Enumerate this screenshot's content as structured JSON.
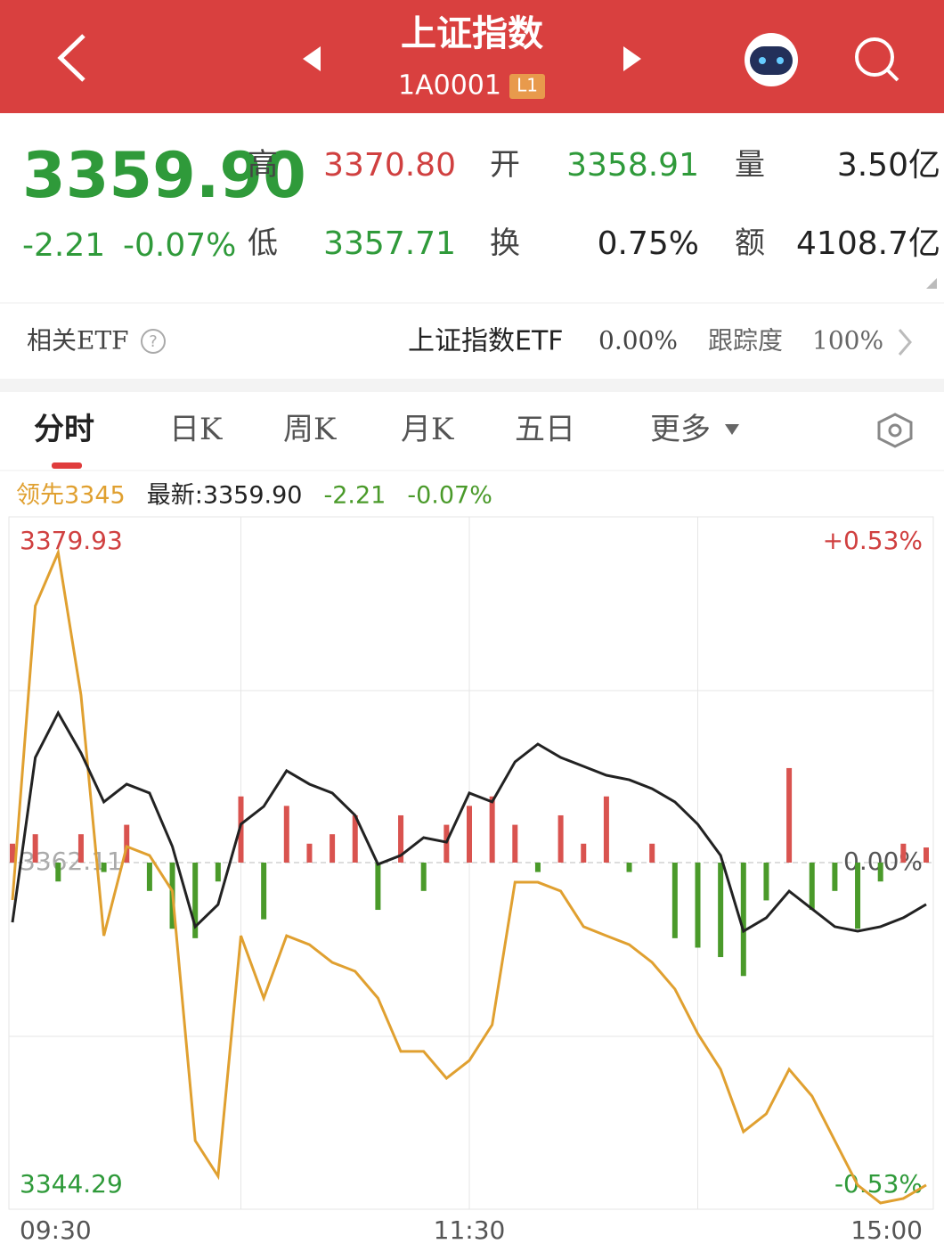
{
  "header": {
    "title": "上证指数",
    "code": "1A0001",
    "badge": "L1"
  },
  "quote": {
    "price": "3359.90",
    "change": "-2.21",
    "pct": "-0.07%",
    "fields": [
      {
        "label": "高",
        "value": "3370.80"
      },
      {
        "label": "开",
        "value": "3358.91"
      },
      {
        "label": "量",
        "value": "3.50亿"
      },
      {
        "label": "低",
        "value": "3357.71"
      },
      {
        "label": "换",
        "value": "0.75%"
      },
      {
        "label": "额",
        "value": "4108.7亿"
      }
    ]
  },
  "etf": {
    "label": "相关ETF",
    "name": "上证指数ETF",
    "change": "0.00%",
    "track_label": "跟踪度",
    "track": "100%"
  },
  "tabs": [
    "分时",
    "日K",
    "周K",
    "月K",
    "五日",
    "更多"
  ],
  "chart_data": {
    "type": "line",
    "categories": [
      "09:30",
      null,
      null,
      null,
      null,
      null,
      null,
      null,
      null,
      null,
      null,
      null,
      null,
      null,
      null,
      null,
      null,
      null,
      null,
      null,
      "11:30",
      null,
      null,
      null,
      null,
      null,
      null,
      null,
      null,
      null,
      null,
      null,
      null,
      null,
      null,
      null,
      null,
      null,
      null,
      null,
      "15:00"
    ],
    "series": [
      {
        "name": "领先3345",
        "color": "#e0a030",
        "values": [
          3360.13,
          3375.69,
          3378.51,
          3370.97,
          3358.24,
          3362.96,
          3362.49,
          3360.6,
          3347.4,
          3345.52,
          3358.24,
          3354.94,
          3358.24,
          3357.77,
          3356.83,
          3356.36,
          3354.94,
          3352.12,
          3352.12,
          3350.7,
          3351.64,
          3353.53,
          3361.07,
          3361.07,
          3360.6,
          3358.72,
          3358.24,
          3357.77,
          3356.83,
          3355.42,
          3353.06,
          3351.17,
          3347.87,
          3348.82,
          3351.17,
          3349.76,
          3347.4,
          3345.05,
          3344.1,
          3344.34,
          3345.05
        ]
      },
      {
        "name": "最新:3359.90",
        "color": "#222222",
        "values": [
          3358.95,
          3367.67,
          3370.03,
          3367.91,
          3365.32,
          3366.26,
          3365.79,
          3362.96,
          3358.72,
          3359.89,
          3364.14,
          3365.08,
          3366.97,
          3366.26,
          3365.79,
          3364.61,
          3362.02,
          3362.49,
          3363.43,
          3363.19,
          3365.79,
          3365.32,
          3367.44,
          3368.38,
          3367.67,
          3367.2,
          3366.73,
          3366.49,
          3366.02,
          3365.32,
          3364.14,
          3362.49,
          3358.48,
          3359.19,
          3360.6,
          3359.66,
          3358.72,
          3358.48,
          3358.72,
          3359.19,
          3359.9
        ]
      }
    ],
    "legend_extra": [
      "-2.21",
      "-0.07%"
    ],
    "bars": {
      "up_color": "#d9534f",
      "down_color": "#4a9a2a",
      "values": [
        1.0,
        1.5,
        -1.0,
        1.5,
        -0.5,
        2.0,
        -1.5,
        -3.5,
        -4.0,
        -1.0,
        3.5,
        -3.0,
        3.0,
        1.0,
        1.5,
        2.5,
        -2.5,
        2.5,
        -1.5,
        2.0,
        3.0,
        3.5,
        2.0,
        -0.5,
        2.5,
        1.0,
        3.5,
        -0.5,
        1.0,
        -4.0,
        -4.5,
        -5.0,
        -6.0,
        -2.0,
        5.0,
        -2.5,
        -1.5,
        -3.5,
        -1.0,
        1.0,
        0.8
      ]
    },
    "ylim": [
      3344.29,
      3379.93
    ],
    "yticks": [
      3344.29,
      3362.11,
      3379.93
    ],
    "y2lim": [
      -0.53,
      0.53
    ],
    "y2ticks": [
      {
        "value": -0.53,
        "label": "-0.53%"
      },
      {
        "value": 0,
        "label": "0.00%"
      },
      {
        "value": 0.53,
        "label": "+0.53%"
      }
    ]
  }
}
